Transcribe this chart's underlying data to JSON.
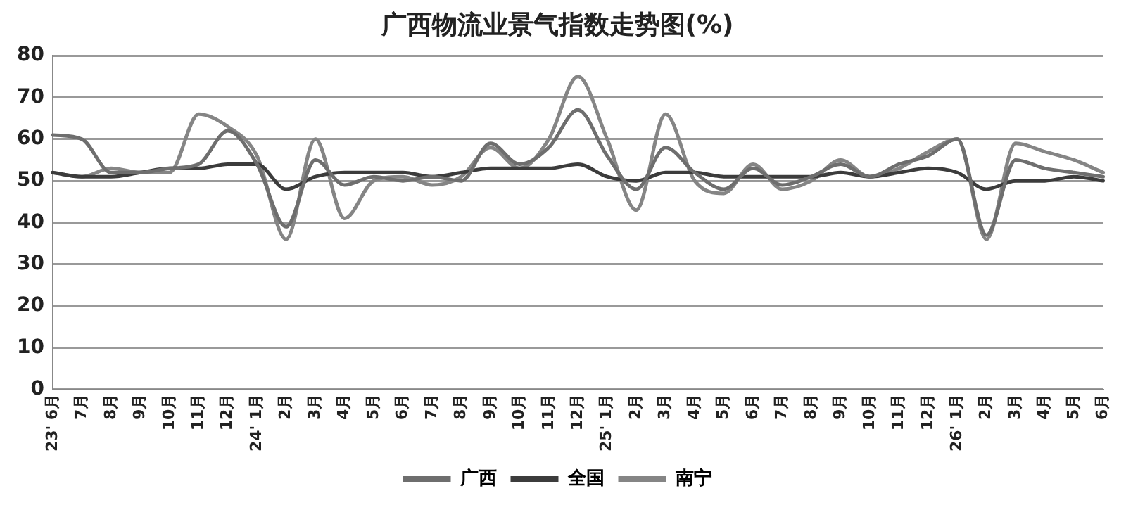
{
  "chart_data": {
    "type": "line",
    "title": "广西物流业景气指数走势图(%)",
    "categories": [
      "23' 6月",
      "7月",
      "8月",
      "9月",
      "10月",
      "11月",
      "12月",
      "24' 1月",
      "2月",
      "3月",
      "4月",
      "5月",
      "6月",
      "7月",
      "8月",
      "9月",
      "10月",
      "11月",
      "12月",
      "25' 1月",
      "2月",
      "3月",
      "4月",
      "5月",
      "6月",
      "7月",
      "8月",
      "9月",
      "10月",
      "11月",
      "12月",
      "26' 1月",
      "2月",
      "3月",
      "4月",
      "5月",
      "6月"
    ],
    "series": [
      {
        "name": "广西",
        "color": "#6e6e6e",
        "values": [
          61,
          60,
          52,
          52,
          53,
          54,
          62,
          54,
          39,
          55,
          49,
          51,
          50,
          51,
          50,
          59,
          54,
          58,
          67,
          56,
          48,
          58,
          52,
          48,
          53,
          49,
          51,
          54,
          51,
          54,
          56,
          60,
          37,
          55,
          53,
          52,
          51
        ]
      },
      {
        "name": "全国",
        "color": "#3c3c3c",
        "values": [
          52,
          51,
          51,
          52,
          53,
          53,
          54,
          54,
          48,
          51,
          52,
          52,
          52,
          51,
          52,
          53,
          53,
          53,
          54,
          51,
          50,
          52,
          52,
          51,
          51,
          51,
          51,
          52,
          51,
          52,
          53,
          52,
          48,
          50,
          50,
          51,
          50
        ]
      },
      {
        "name": "南宁",
        "color": "#858585",
        "values": [
          52,
          51,
          53,
          52,
          52,
          66,
          63,
          56,
          36,
          60,
          41,
          50,
          51,
          49,
          51,
          58,
          53,
          60,
          75,
          60,
          43,
          66,
          50,
          47,
          54,
          48,
          50,
          55,
          51,
          53,
          57,
          60,
          36,
          59,
          57,
          55,
          52
        ]
      }
    ],
    "ylim": [
      0,
      80
    ],
    "yticks": [
      0,
      10,
      20,
      30,
      40,
      50,
      60,
      70,
      80
    ],
    "grid": "y",
    "legend": "bottom",
    "marker": "none",
    "line_style": "solid"
  }
}
